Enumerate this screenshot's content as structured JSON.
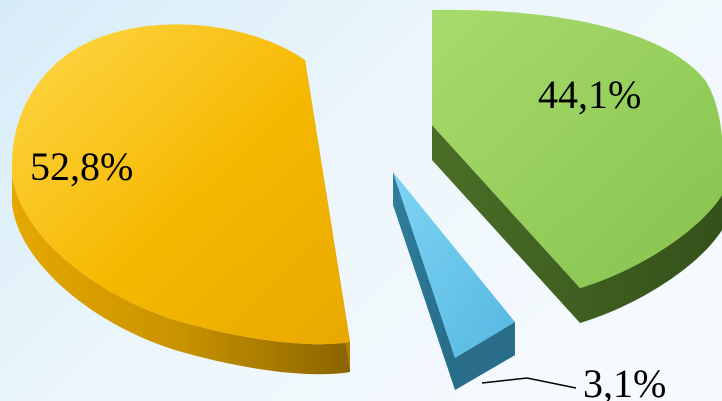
{
  "chart_data": {
    "type": "pie",
    "style": "3d-exploded",
    "title": "",
    "slices": [
      {
        "label": "52,8%",
        "value": 52.8,
        "color": "#f7bb00",
        "side_color": "#b98700"
      },
      {
        "label": "44,1%",
        "value": 44.1,
        "color": "#8fcc55",
        "side_color": "#3f5f22"
      },
      {
        "label": "3,1%",
        "value": 3.1,
        "color": "#64c3ea",
        "side_color": "#2a6f8c"
      }
    ],
    "legend": "none",
    "grid": false
  }
}
